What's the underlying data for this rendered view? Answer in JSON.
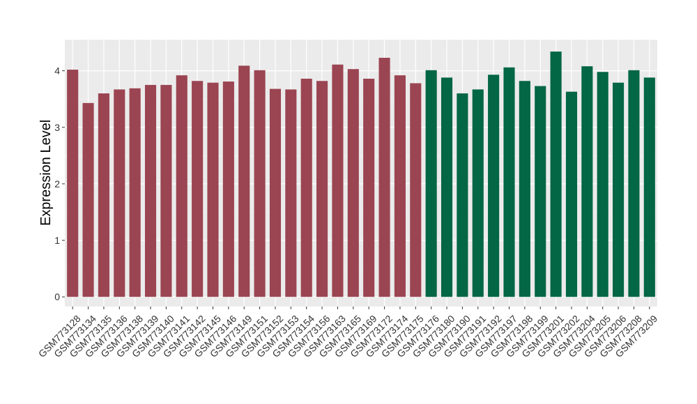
{
  "chart_data": {
    "type": "bar",
    "xlabel": "",
    "ylabel": "Expression Level",
    "ylim": [
      -0.17,
      4.55
    ],
    "yticks": [
      0,
      1,
      2,
      3,
      4
    ],
    "grid": true,
    "colors": {
      "group1": "#9b4552",
      "group2": "#036645",
      "panel": "#ebebeb",
      "grid_major": "#ffffff"
    },
    "categories": [
      "GSM773128",
      "GSM773134",
      "GSM773135",
      "GSM773136",
      "GSM773138",
      "GSM773139",
      "GSM773140",
      "GSM773141",
      "GSM773142",
      "GSM773145",
      "GSM773146",
      "GSM773149",
      "GSM773151",
      "GSM773152",
      "GSM773153",
      "GSM773154",
      "GSM773156",
      "GSM773163",
      "GSM773165",
      "GSM773169",
      "GSM773172",
      "GSM773174",
      "GSM773175",
      "GSM773176",
      "GSM773180",
      "GSM773190",
      "GSM773191",
      "GSM773192",
      "GSM773197",
      "GSM773198",
      "GSM773199",
      "GSM773201",
      "GSM773202",
      "GSM773204",
      "GSM773205",
      "GSM773206",
      "GSM773208",
      "GSM773209"
    ],
    "values": [
      4.02,
      3.43,
      3.6,
      3.67,
      3.69,
      3.75,
      3.75,
      3.92,
      3.82,
      3.79,
      3.81,
      4.09,
      4.01,
      3.68,
      3.67,
      3.86,
      3.82,
      4.11,
      4.03,
      3.86,
      4.23,
      3.92,
      3.78,
      4.01,
      3.88,
      3.6,
      3.67,
      3.93,
      4.06,
      3.82,
      3.73,
      4.34,
      3.63,
      4.08,
      3.98,
      3.79,
      4.01,
      3.88
    ],
    "groups": [
      1,
      1,
      1,
      1,
      1,
      1,
      1,
      1,
      1,
      1,
      1,
      1,
      1,
      1,
      1,
      1,
      1,
      1,
      1,
      1,
      1,
      1,
      1,
      2,
      2,
      2,
      2,
      2,
      2,
      2,
      2,
      2,
      2,
      2,
      2,
      2,
      2,
      2
    ]
  }
}
